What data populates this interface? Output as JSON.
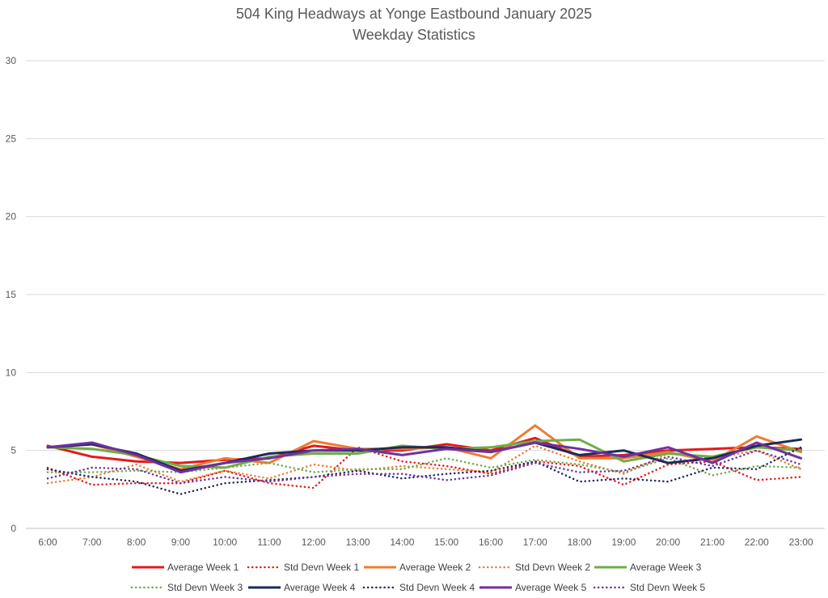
{
  "chart_data": {
    "type": "line",
    "title": "504 King Headways at Yonge Eastbound January 2025",
    "subtitle": "Weekday Statistics",
    "xlabel": "",
    "ylabel": "",
    "ylim": [
      0,
      30
    ],
    "yticks": [
      "0",
      "5",
      "10",
      "15",
      "20",
      "25",
      "30"
    ],
    "grid": true,
    "legend_position": "bottom",
    "categories": [
      "6:00",
      "7:00",
      "8:00",
      "9:00",
      "10:00",
      "11:00",
      "12:00",
      "13:00",
      "14:00",
      "15:00",
      "16:00",
      "17:00",
      "18:00",
      "19:00",
      "20:00",
      "21:00",
      "22:00",
      "23:00"
    ],
    "series": [
      {
        "name": "Average Week 1",
        "color": "#e31a1c",
        "dash": "solid",
        "values": [
          5.3,
          4.6,
          4.3,
          4.2,
          4.4,
          4.5,
          5.3,
          5.0,
          5.0,
          5.4,
          5.0,
          5.8,
          4.6,
          4.7,
          5.0,
          5.1,
          5.2,
          5.1
        ]
      },
      {
        "name": "Std Devn Week 1",
        "color": "#e31a1c",
        "dash": "dotted",
        "values": [
          3.9,
          2.8,
          2.9,
          2.9,
          3.7,
          2.9,
          2.6,
          5.2,
          4.3,
          4.0,
          3.5,
          4.3,
          4.0,
          2.8,
          4.1,
          4.3,
          3.1,
          3.3
        ]
      },
      {
        "name": "Average Week 2",
        "color": "#ed7d31",
        "dash": "solid",
        "values": [
          5.2,
          5.4,
          4.6,
          3.8,
          4.5,
          4.2,
          5.6,
          5.1,
          5.1,
          5.2,
          4.5,
          6.6,
          4.5,
          4.5,
          4.9,
          4.3,
          5.9,
          4.9
        ]
      },
      {
        "name": "Std Devn Week 2",
        "color": "#ed7d31",
        "dash": "dotted",
        "values": [
          2.9,
          3.3,
          4.1,
          3.0,
          3.7,
          3.2,
          4.1,
          3.7,
          4.0,
          3.8,
          3.6,
          5.3,
          4.3,
          3.5,
          4.8,
          4.5,
          5.0,
          3.8
        ]
      },
      {
        "name": "Average Week 3",
        "color": "#70ad47",
        "dash": "solid",
        "values": [
          5.2,
          5.1,
          4.7,
          4.0,
          3.9,
          4.6,
          4.8,
          4.8,
          5.3,
          5.1,
          5.2,
          5.6,
          5.7,
          4.3,
          4.8,
          4.6,
          5.2,
          5.0
        ]
      },
      {
        "name": "Std Devn Week 3",
        "color": "#70ad47",
        "dash": "dotted",
        "values": [
          3.6,
          3.6,
          3.7,
          3.6,
          3.9,
          4.2,
          3.6,
          3.8,
          3.8,
          4.5,
          3.9,
          4.4,
          4.1,
          3.6,
          4.5,
          3.4,
          4.0,
          3.9
        ]
      },
      {
        "name": "Average Week 4",
        "color": "#1f2a5a",
        "dash": "solid",
        "values": [
          5.2,
          5.4,
          4.8,
          3.7,
          4.2,
          4.8,
          5.0,
          5.0,
          5.2,
          5.2,
          4.9,
          5.5,
          4.7,
          5.0,
          4.2,
          4.5,
          5.3,
          5.7
        ]
      },
      {
        "name": "Std Devn Week 4",
        "color": "#1f2a5a",
        "dash": "dotted",
        "values": [
          3.8,
          3.3,
          3.0,
          2.2,
          2.9,
          3.1,
          3.3,
          3.7,
          3.2,
          3.5,
          3.7,
          4.3,
          3.0,
          3.2,
          3.0,
          3.9,
          3.8,
          5.2
        ]
      },
      {
        "name": "Average Week 5",
        "color": "#7030a0",
        "dash": "solid",
        "values": [
          5.2,
          5.5,
          4.7,
          3.6,
          4.2,
          4.5,
          5.0,
          5.1,
          4.7,
          5.1,
          4.9,
          5.5,
          5.1,
          4.6,
          5.2,
          4.2,
          5.5,
          4.5
        ]
      },
      {
        "name": "Std Devn Week 5",
        "color": "#7030a0",
        "dash": "dotted",
        "values": [
          3.2,
          3.9,
          3.8,
          2.9,
          3.3,
          3.0,
          3.3,
          3.5,
          3.5,
          3.1,
          3.4,
          4.2,
          3.6,
          3.7,
          4.6,
          4.0,
          5.0,
          4.1
        ]
      }
    ]
  }
}
